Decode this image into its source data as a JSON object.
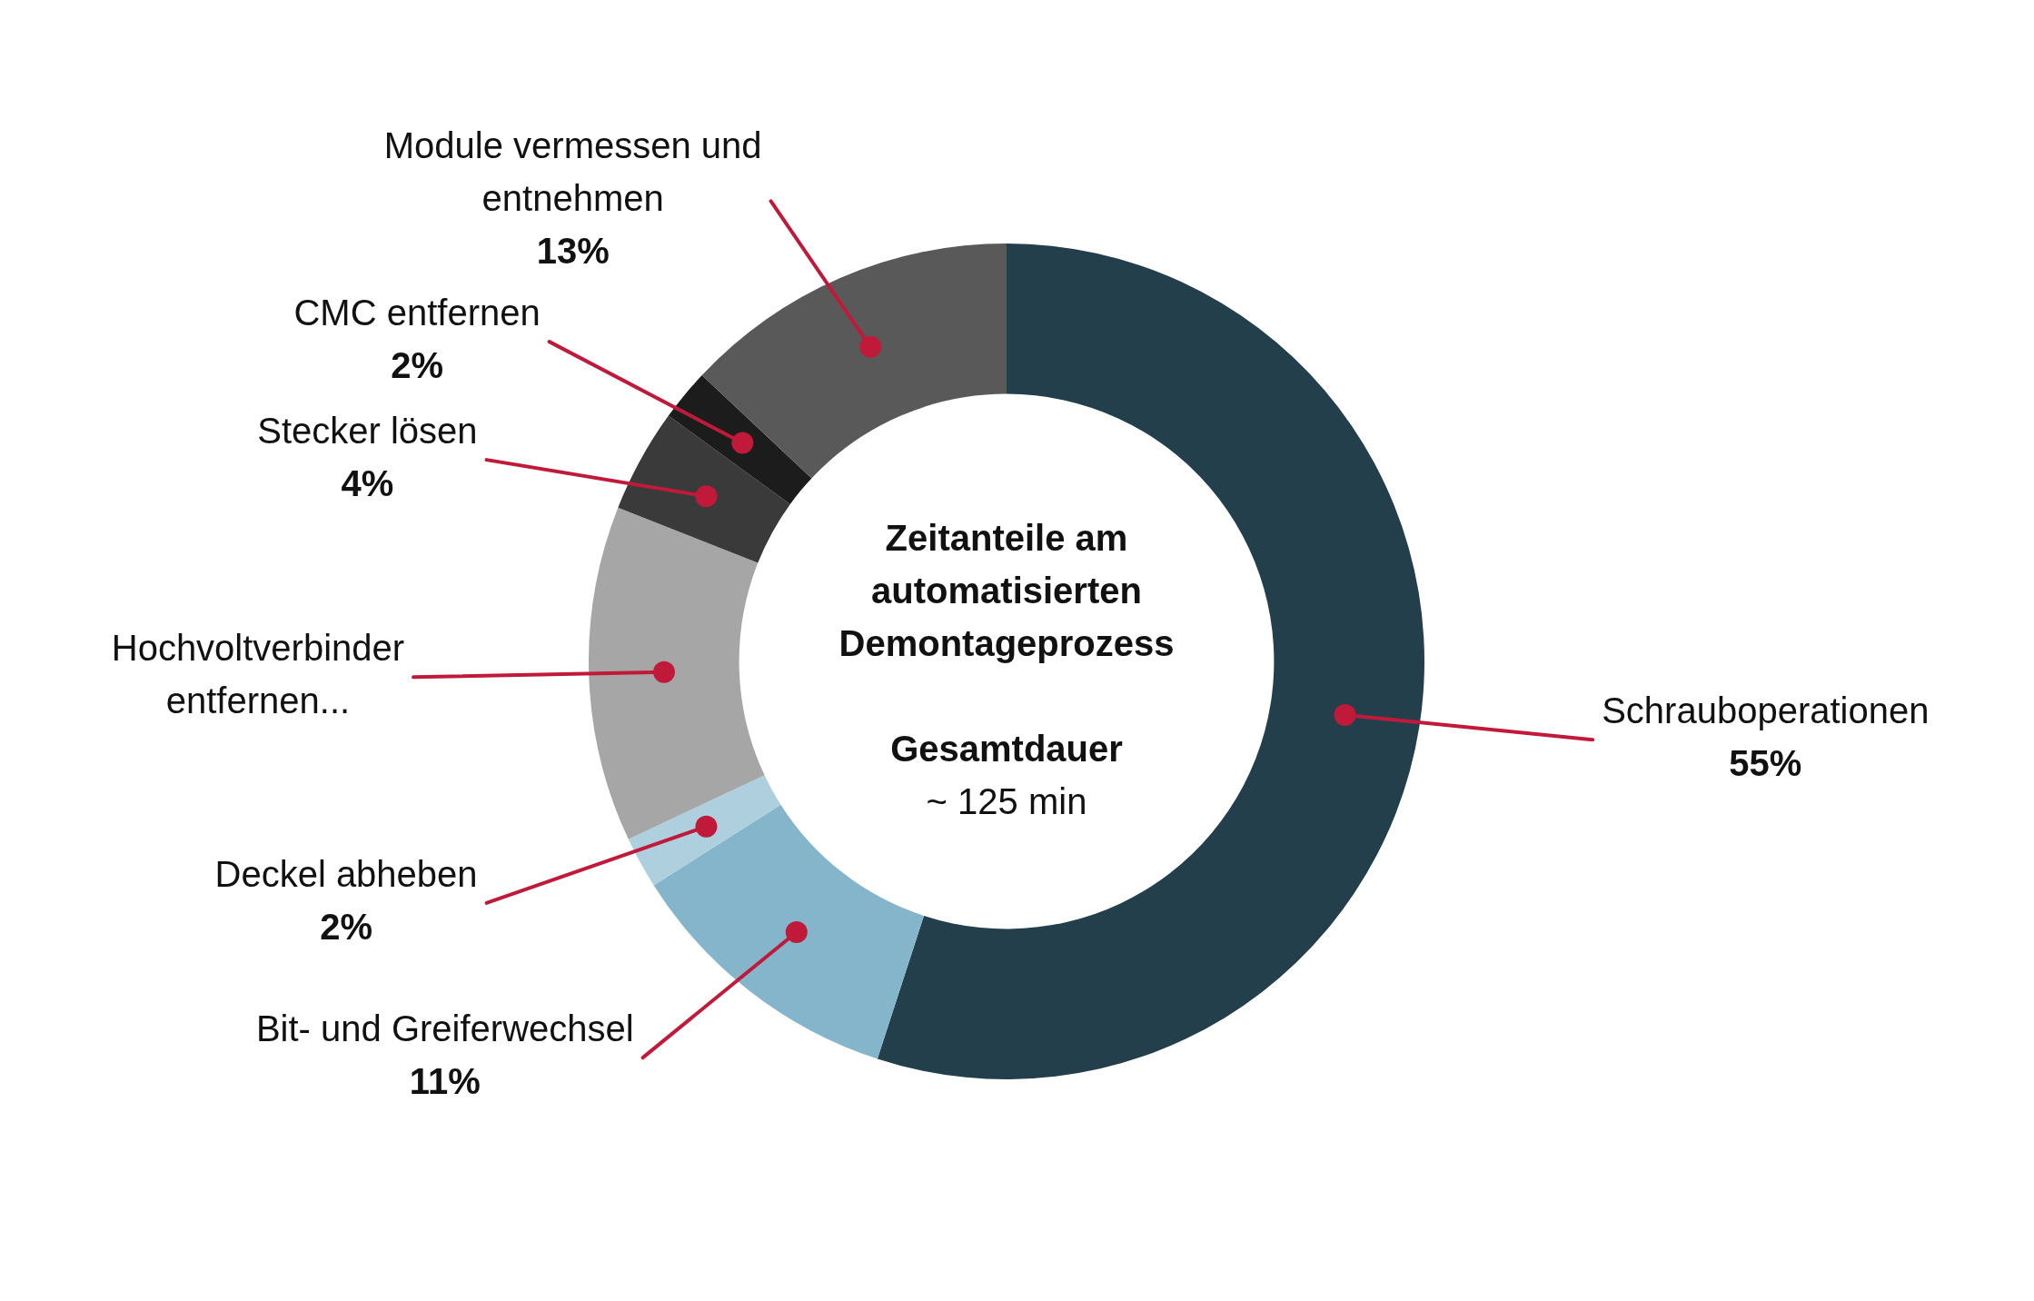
{
  "chart_data": {
    "type": "donut",
    "title": "Zeitanteile am automatisierten Demontageprozess",
    "annotations": [
      "Gesamtdauer",
      "~ 125 min"
    ],
    "categories": [
      "Schrauboperationen",
      "Bit- und Greiferwechsel",
      "Deckel abheben",
      "Hochvoltverbinder entfernen...",
      "Stecker lösen",
      "CMC entfernen",
      "Module vermessen und entnehmen"
    ],
    "values": [
      55,
      11,
      2,
      13,
      4,
      2,
      13
    ],
    "value_labels": [
      "55%",
      "11%",
      "2%",
      null,
      "4%",
      "2%",
      "13%"
    ],
    "colors": [
      "#233f4c",
      "#85b5cb",
      "#aed0de",
      "#a6a6a6",
      "#3a3a3a",
      "#1c1c1c",
      "#595959"
    ],
    "legend": false
  }
}
